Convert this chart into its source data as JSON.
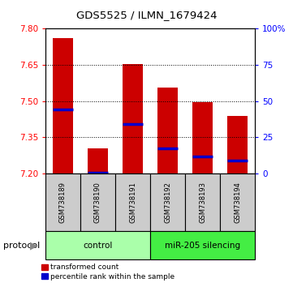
{
  "title": "GDS5525 / ILMN_1679424",
  "samples": [
    "GSM738189",
    "GSM738190",
    "GSM738191",
    "GSM738192",
    "GSM738193",
    "GSM738194"
  ],
  "bar_tops": [
    7.76,
    7.305,
    7.655,
    7.555,
    7.495,
    7.44
  ],
  "bar_bottom": 7.2,
  "blue_markers": [
    7.465,
    7.205,
    7.405,
    7.305,
    7.27,
    7.255
  ],
  "ylim": [
    7.2,
    7.8
  ],
  "yticks_left": [
    7.2,
    7.35,
    7.5,
    7.65,
    7.8
  ],
  "yticks_right": [
    0,
    25,
    50,
    75,
    100
  ],
  "bar_color": "#cc0000",
  "blue_color": "#0000cc",
  "groups": [
    {
      "label": "control",
      "indices": [
        0,
        1,
        2
      ],
      "color": "#aaffaa"
    },
    {
      "label": "miR-205 silencing",
      "indices": [
        3,
        4,
        5
      ],
      "color": "#44ee44"
    }
  ],
  "protocol_label": "protocol",
  "legend_red": "transformed count",
  "legend_blue": "percentile rank within the sample",
  "background_color": "#ffffff"
}
